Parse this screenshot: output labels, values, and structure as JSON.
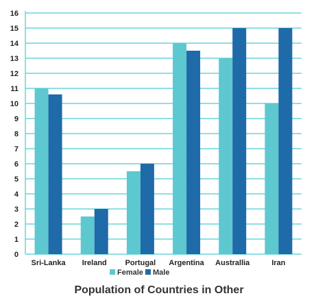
{
  "chart_data": {
    "type": "bar",
    "title": "Population of Countries in Other",
    "xlabel": "",
    "ylabel": "",
    "categories": [
      "Sri-Lanka",
      "Ireland",
      "Portugal",
      "Argentina",
      "Australlia",
      "Iran"
    ],
    "series": [
      {
        "name": "Female",
        "color": "#5ec8d0",
        "values": [
          11,
          2.5,
          5.5,
          14,
          13,
          10
        ]
      },
      {
        "name": "Male",
        "color": "#1f6aa8",
        "values": [
          10.6,
          3,
          6,
          13.5,
          15,
          15
        ]
      }
    ],
    "ylim": [
      0,
      16
    ],
    "yticks": [
      0,
      1,
      2,
      3,
      4,
      5,
      6,
      7,
      8,
      9,
      10,
      11,
      12,
      13,
      14,
      15,
      16
    ],
    "grid": true,
    "grid_color": "#66d6dc",
    "legend": "bottom"
  }
}
